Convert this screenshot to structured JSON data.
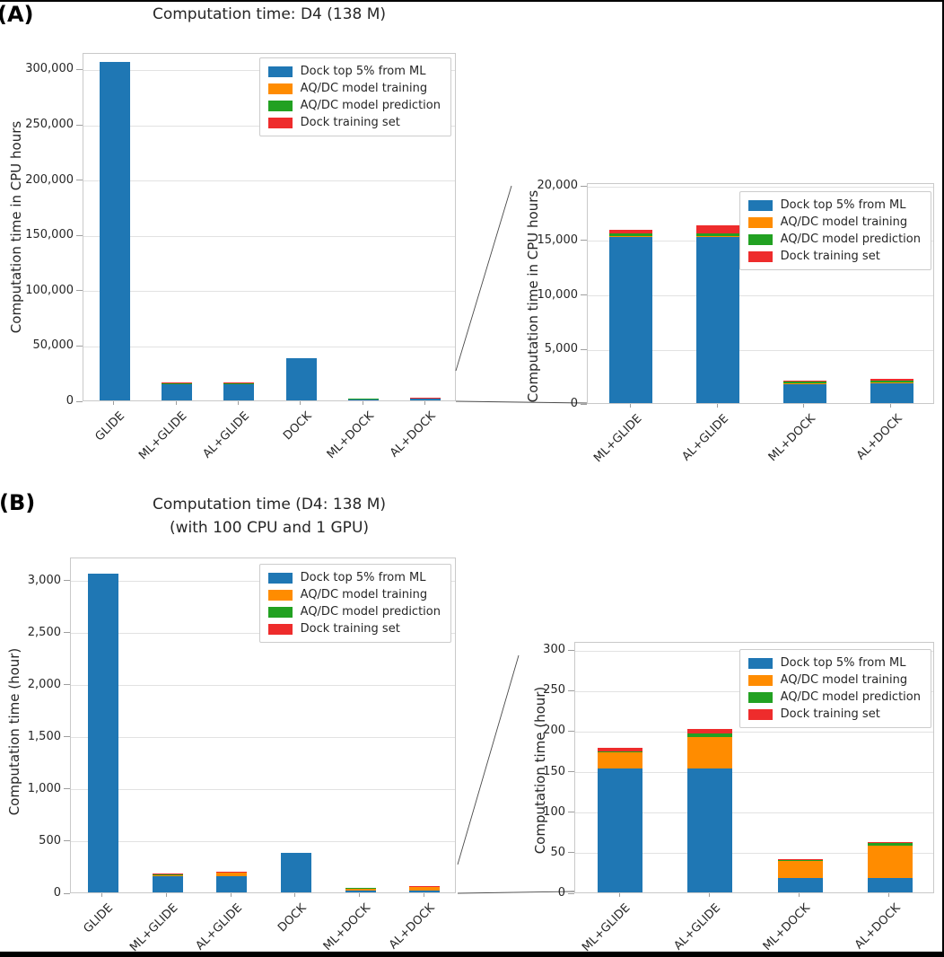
{
  "figure": {
    "panel_a_label": "(A)",
    "panel_b_label": "(B)"
  },
  "colors": {
    "dock_top": "#1f77b4",
    "training": "#ff8c00",
    "prediction": "#22a122",
    "dock_training_set": "#ee2c2c"
  },
  "chart_data": [
    {
      "id": "a-main",
      "type": "bar",
      "stacked": true,
      "title_lines": [
        "Computation time: D4 (138 M)"
      ],
      "ylabel": "Computation time in CPU hours",
      "categories": [
        "GLIDE",
        "ML+GLIDE",
        "AL+GLIDE",
        "DOCK",
        "ML+DOCK",
        "AL+DOCK"
      ],
      "series": [
        {
          "name": "Dock top 5% from ML",
          "color": "dock_top",
          "values": [
            306000,
            15300,
            15300,
            38000,
            1800,
            1800
          ]
        },
        {
          "name": "AQ/DC model training",
          "color": "training",
          "values": [
            0,
            50,
            50,
            0,
            30,
            60
          ]
        },
        {
          "name": "AQ/DC model prediction",
          "color": "prediction",
          "values": [
            0,
            180,
            220,
            0,
            150,
            200
          ]
        },
        {
          "name": "Dock training set",
          "color": "dock_training_set",
          "values": [
            0,
            330,
            740,
            0,
            40,
            150
          ]
        }
      ],
      "ylim": [
        0,
        315000
      ],
      "yticks": [
        {
          "value": 0,
          "label": "0"
        },
        {
          "value": 50000,
          "label": "50,000"
        },
        {
          "value": 100000,
          "label": "100,000"
        },
        {
          "value": 150000,
          "label": "150,000"
        },
        {
          "value": 200000,
          "label": "200,000"
        },
        {
          "value": 250000,
          "label": "250,000"
        },
        {
          "value": 300000,
          "label": "300,000"
        }
      ],
      "grid": true,
      "legend_position": "upper right"
    },
    {
      "id": "a-zoom",
      "type": "bar",
      "stacked": true,
      "title_lines": [],
      "ylabel": "Computation time in CPU hours",
      "categories": [
        "ML+GLIDE",
        "AL+GLIDE",
        "ML+DOCK",
        "AL+DOCK"
      ],
      "series": [
        {
          "name": "Dock top 5% from ML",
          "color": "dock_top",
          "values": [
            15300,
            15300,
            1800,
            1800
          ]
        },
        {
          "name": "AQ/DC model training",
          "color": "training",
          "values": [
            50,
            50,
            30,
            60
          ]
        },
        {
          "name": "AQ/DC model prediction",
          "color": "prediction",
          "values": [
            180,
            220,
            150,
            200
          ]
        },
        {
          "name": "Dock training set",
          "color": "dock_training_set",
          "values": [
            330,
            740,
            40,
            150
          ]
        }
      ],
      "ylim": [
        0,
        20250
      ],
      "yticks": [
        {
          "value": 0,
          "label": "0"
        },
        {
          "value": 5000,
          "label": "5,000"
        },
        {
          "value": 10000,
          "label": "10,000"
        },
        {
          "value": 15000,
          "label": "15,000"
        },
        {
          "value": 20000,
          "label": "20,000"
        }
      ],
      "grid": true,
      "legend_position": "upper right"
    },
    {
      "id": "b-main",
      "type": "bar",
      "stacked": true,
      "title_lines": [
        "Computation time (D4: 138 M)",
        "(with 100 CPU and 1 GPU)"
      ],
      "ylabel": "Computation time (hour)",
      "categories": [
        "GLIDE",
        "ML+GLIDE",
        "AL+GLIDE",
        "DOCK",
        "ML+DOCK",
        "AL+DOCK"
      ],
      "series": [
        {
          "name": "Dock top 5% from ML",
          "color": "dock_top",
          "values": [
            3060,
            153,
            153,
            380,
            18,
            18
          ]
        },
        {
          "name": "AQ/DC model training",
          "color": "training",
          "values": [
            0,
            20,
            39,
            0,
            21,
            40
          ]
        },
        {
          "name": "AQ/DC model prediction",
          "color": "prediction",
          "values": [
            0,
            1,
            4,
            0,
            1.5,
            3
          ]
        },
        {
          "name": "Dock training set",
          "color": "dock_training_set",
          "values": [
            0,
            4,
            6,
            0,
            0.5,
            1.5
          ]
        }
      ],
      "ylim": [
        0,
        3224
      ],
      "yticks": [
        {
          "value": 0,
          "label": "0"
        },
        {
          "value": 500,
          "label": "500"
        },
        {
          "value": 1000,
          "label": "1,000"
        },
        {
          "value": 1500,
          "label": "1,500"
        },
        {
          "value": 2000,
          "label": "2,000"
        },
        {
          "value": 2500,
          "label": "2,500"
        },
        {
          "value": 3000,
          "label": "3,000"
        }
      ],
      "grid": true,
      "legend_position": "upper right"
    },
    {
      "id": "b-zoom",
      "type": "bar",
      "stacked": true,
      "title_lines": [],
      "ylabel": "Computation time (hour)",
      "categories": [
        "ML+GLIDE",
        "AL+GLIDE",
        "ML+DOCK",
        "AL+DOCK"
      ],
      "series": [
        {
          "name": "Dock top 5% from ML",
          "color": "dock_top",
          "values": [
            153,
            153,
            18,
            18
          ]
        },
        {
          "name": "AQ/DC model training",
          "color": "training",
          "values": [
            20,
            39,
            21,
            40
          ]
        },
        {
          "name": "AQ/DC model prediction",
          "color": "prediction",
          "values": [
            1,
            4,
            1.5,
            3
          ]
        },
        {
          "name": "Dock training set",
          "color": "dock_training_set",
          "values": [
            4,
            6,
            0.5,
            1.5
          ]
        }
      ],
      "ylim": [
        0,
        310
      ],
      "yticks": [
        {
          "value": 0,
          "label": "0"
        },
        {
          "value": 50,
          "label": "50"
        },
        {
          "value": 100,
          "label": "100"
        },
        {
          "value": 150,
          "label": "150"
        },
        {
          "value": 200,
          "label": "200"
        },
        {
          "value": 250,
          "label": "250"
        },
        {
          "value": 300,
          "label": "300"
        }
      ],
      "grid": true,
      "legend_position": "upper right"
    }
  ]
}
